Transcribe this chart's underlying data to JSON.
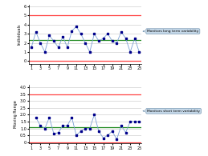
{
  "individuals": [
    1.5,
    3.2,
    2.0,
    1.0,
    2.8,
    2.2,
    1.5,
    2.7,
    1.5,
    3.3,
    3.8,
    3.0,
    2.0,
    1.0,
    3.0,
    2.2,
    2.5,
    3.0,
    2.2,
    2.0,
    3.2,
    2.5,
    1.0,
    2.5,
    1.0
  ],
  "moving_range": [
    0,
    1.8,
    1.2,
    1.0,
    1.8,
    0.6,
    0.7,
    1.2,
    1.2,
    1.8,
    0.5,
    0.8,
    1.0,
    1.0,
    2.0,
    0.8,
    0.3,
    0.5,
    0.8,
    0.2,
    1.2,
    0.7,
    1.5,
    1.5,
    1.5
  ],
  "x_ticks": [
    1,
    3,
    5,
    7,
    9,
    11,
    13,
    15,
    17,
    19,
    21,
    23,
    25
  ],
  "ind_ucl": 5.0,
  "ind_cl": 2.3,
  "ind_lcl": 0.0,
  "mr_ucl": 3.46,
  "mr_cl": 1.06,
  "mr_lcl": 0.0,
  "ind_ylim": [
    -0.3,
    6.2
  ],
  "mr_ylim": [
    -0.1,
    4.2
  ],
  "ind_yticks": [
    0,
    1,
    2,
    3,
    4,
    5,
    6
  ],
  "mr_yticks": [
    0,
    0.5,
    1.0,
    1.5,
    2.0,
    2.5,
    3.0,
    3.5,
    4.0
  ],
  "ind_ylabel": "Individuals",
  "mr_ylabel": "Moving Range",
  "line_color": "#7b9fd4",
  "marker_color": "#00008b",
  "ucl_color": "#ff4444",
  "cl_color": "#228B22",
  "lcl_color": "#ff4444",
  "grid_color": "#d0d0d0",
  "bg_color": "#ffffff",
  "annotation1": "Monitors long term variability",
  "annotation2": "Monitors short term variability",
  "annotation_bg": "#c5d8e8",
  "annotation_border": "#7a9ab5"
}
